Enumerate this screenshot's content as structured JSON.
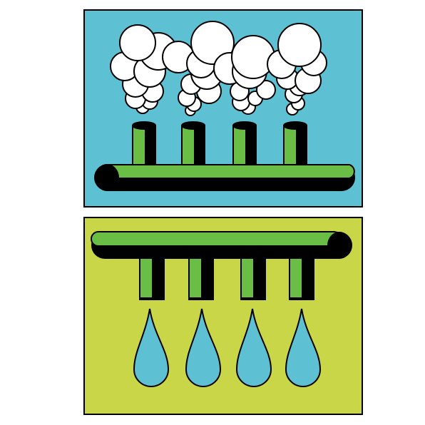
{
  "illustration": {
    "top_panel": {
      "subject": "steam",
      "background": "#5ec0d3",
      "pipe_green": "#6abe45",
      "cloud_fill": "#ffffff",
      "stack_count": 4
    },
    "bottom_panel": {
      "subject": "water",
      "background": "#c8d647",
      "pipe_green": "#6abe45",
      "drop_fill": "#5ec0d3",
      "nozzle_count": 4
    },
    "outline": "#000000"
  }
}
